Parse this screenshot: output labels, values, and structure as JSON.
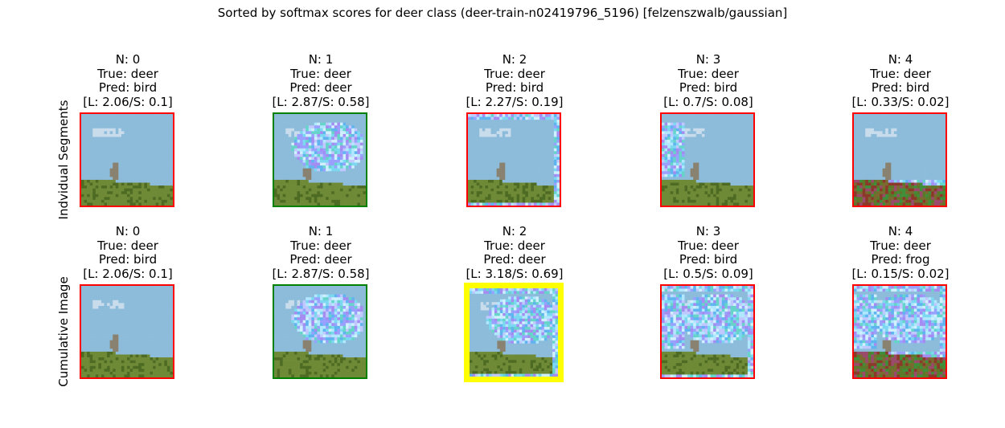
{
  "title": "Sorted by softmax scores for deer class (deer-train-n02419796_5196) [felzenszwalb/gaussian]",
  "colors": {
    "correct": "#008000",
    "incorrect": "#ff0000",
    "best": "#ffff00",
    "sky": "#8dbcdb",
    "cloud": "#c9dcec",
    "grass": "#6f8a36",
    "grass_dark": "#4d6b22",
    "deer": "#8a8270",
    "noise": [
      "#7bd8f0",
      "#9aa0ff",
      "#b2e8ff",
      "#66d4c8",
      "#a48cf0",
      "#c0c8ff",
      "#5fb4f0",
      "#d0f0ff"
    ]
  },
  "rows": [
    {
      "label": "Indvidual Segments",
      "panels": [
        {
          "n": "N: 0",
          "true": "True: deer",
          "pred": "Pred: bird",
          "scores": "[L: 2.06/S: 0.1]",
          "status": "incorrect",
          "noise": []
        },
        {
          "n": "N: 1",
          "true": "True: deer",
          "pred": "Pred: deer",
          "scores": "[L: 2.87/S: 0.58]",
          "status": "correct",
          "noise": [
            "cloud"
          ]
        },
        {
          "n": "N: 2",
          "true": "True: deer",
          "pred": "Pred: bird",
          "scores": "[L: 2.27/S: 0.19]",
          "status": "incorrect",
          "noise": [
            "border"
          ]
        },
        {
          "n": "N: 3",
          "true": "True: deer",
          "pred": "Pred: bird",
          "scores": "[L: 0.7/S: 0.08]",
          "status": "incorrect",
          "noise": [
            "left"
          ]
        },
        {
          "n": "N: 4",
          "true": "True: deer",
          "pred": "Pred: bird",
          "scores": "[L: 0.33/S: 0.02]",
          "status": "incorrect",
          "noise": [
            "grass"
          ]
        }
      ]
    },
    {
      "label": "Cumulative Image",
      "panels": [
        {
          "n": "N: 0",
          "true": "True: deer",
          "pred": "Pred: bird",
          "scores": "[L: 2.06/S: 0.1]",
          "status": "incorrect",
          "noise": []
        },
        {
          "n": "N: 1",
          "true": "True: deer",
          "pred": "Pred: deer",
          "scores": "[L: 2.87/S: 0.58]",
          "status": "correct",
          "noise": [
            "cloud"
          ]
        },
        {
          "n": "N: 2",
          "true": "True: deer",
          "pred": "Pred: deer",
          "scores": "[L: 3.18/S: 0.69]",
          "status": "best",
          "noise": [
            "cloud",
            "border"
          ]
        },
        {
          "n": "N: 3",
          "true": "True: deer",
          "pred": "Pred: bird",
          "scores": "[L: 0.5/S: 0.09]",
          "status": "incorrect",
          "noise": [
            "cloud",
            "border",
            "left"
          ]
        },
        {
          "n": "N: 4",
          "true": "True: deer",
          "pred": "Pred: frog",
          "scores": "[L: 0.15/S: 0.02]",
          "status": "incorrect",
          "noise": [
            "cloud",
            "border",
            "left",
            "grass"
          ]
        }
      ]
    }
  ]
}
